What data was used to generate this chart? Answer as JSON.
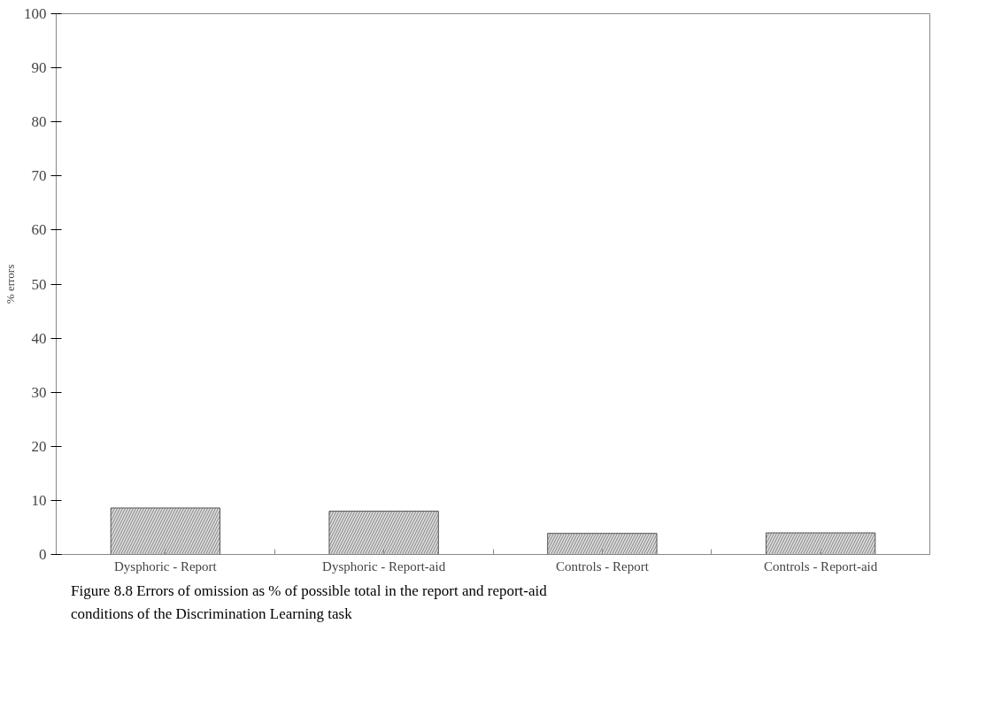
{
  "chart_data": {
    "type": "bar",
    "ylabel": "% errors",
    "categories": [
      "Dysphoric - Report",
      "Dysphoric - Report-aid",
      "Controls - Report",
      "Controls - Report-aid"
    ],
    "values": [
      8.6,
      8.0,
      3.9,
      4.0
    ],
    "color": "#d9d9d9",
    "ylim": [
      0,
      100
    ],
    "yticks": [
      0,
      10,
      20,
      30,
      40,
      50,
      60,
      70,
      80,
      90,
      100
    ],
    "grid": false,
    "annotations": [
      "Figure 8.8 Errors of omission as % of possible total in the report and report-aid conditions of the Discrimination Learning task"
    ]
  }
}
